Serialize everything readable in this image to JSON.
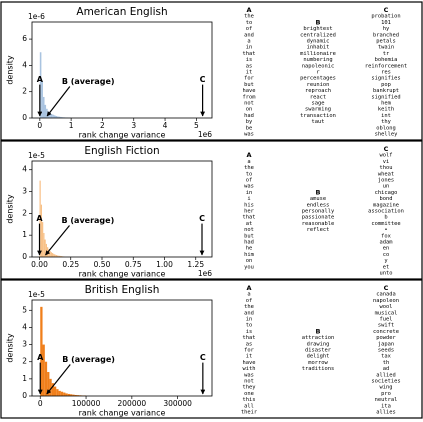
{
  "chart_data": [
    {
      "type": "histogram",
      "title": "American English",
      "x_label": "rank change variance",
      "y_label": "density",
      "x_offset_label": "1e6",
      "y_offset_label": "1e-6",
      "color": "#a9c3e0",
      "xlim": [
        -0.25,
        5.5
      ],
      "ylim": [
        0,
        7.3
      ],
      "xticks": [
        0,
        1,
        2,
        3,
        4,
        5
      ],
      "yticks": [
        0,
        2,
        4,
        6
      ],
      "bins": [
        0,
        0.05,
        0.1,
        0.15,
        0.2,
        0.25,
        0.3,
        0.35,
        0.4,
        0.45,
        0.5,
        0.55,
        0.6,
        0.65,
        0.7,
        0.75,
        0.8,
        0.85,
        0.9,
        0.95,
        1.0
      ],
      "values": [
        5.0,
        2.8,
        1.6,
        1.0,
        0.7,
        0.5,
        0.4,
        0.3,
        0.25,
        0.2,
        0.15,
        0.12,
        0.1,
        0.08,
        0.06,
        0.05,
        0.04,
        0.03,
        0.02,
        0.02
      ],
      "annotations": [
        {
          "text": "A",
          "x": 0.0
        },
        {
          "text": "B (average)",
          "x": 0.2
        },
        {
          "text": "C",
          "x": 5.2
        }
      ],
      "word_columns": [
        {
          "label": "A",
          "words": [
            "the",
            "to",
            "of",
            "and",
            "a",
            "in",
            "that",
            "is",
            "as",
            "it",
            "for",
            "but",
            "have",
            "from",
            "not",
            "on",
            "had",
            "by",
            "be",
            "was"
          ]
        },
        {
          "label": "B",
          "words": [
            "brightest",
            "centralized",
            "dynamic",
            "inhabit",
            "millionaire",
            "numbering",
            "napoleonic",
            "r",
            "percentages",
            "reunion",
            "reproach",
            "react",
            "sage",
            "swarming",
            "transaction",
            "taut"
          ]
        },
        {
          "label": "C",
          "words": [
            "probation",
            "101",
            "hy",
            "branched",
            "petals",
            "twain",
            "tr",
            "bohemia",
            "reinforcement",
            "res",
            "signifies",
            "pop",
            "bankrupt",
            "signified",
            "hem",
            "keith",
            "int",
            "thy",
            "oblong",
            "shelley"
          ]
        }
      ]
    },
    {
      "type": "histogram",
      "title": "English Fiction",
      "x_label": "rank change variance",
      "y_label": "density",
      "x_offset_label": "1e6",
      "y_offset_label": "1e-5",
      "color": "#f8c188",
      "xlim": [
        -0.06,
        1.38
      ],
      "ylim": [
        0,
        4.4
      ],
      "xticks": [
        {
          "value": 0,
          "label": "0.00"
        },
        {
          "value": 0.25,
          "label": "0.25"
        },
        {
          "value": 0.5,
          "label": "0.50"
        },
        {
          "value": 0.75,
          "label": "0.75"
        },
        {
          "value": 1,
          "label": "1.00"
        },
        {
          "value": 1.25,
          "label": "1.25"
        }
      ],
      "yticks": [
        0,
        1,
        2,
        3,
        4
      ],
      "bins": [
        0,
        0.01,
        0.02,
        0.03,
        0.04,
        0.05,
        0.06,
        0.07,
        0.08,
        0.09,
        0.1,
        0.11,
        0.12,
        0.13,
        0.14,
        0.15,
        0.16,
        0.17,
        0.18,
        0.19,
        0.2
      ],
      "values": [
        3.5,
        2.4,
        1.6,
        1.1,
        0.8,
        0.6,
        0.45,
        0.35,
        0.28,
        0.22,
        0.18,
        0.14,
        0.11,
        0.09,
        0.07,
        0.06,
        0.05,
        0.04,
        0.03,
        0.02
      ],
      "annotations": [
        {
          "text": "A",
          "x": 0.0
        },
        {
          "text": "B (average)",
          "x": 0.04
        },
        {
          "text": "C",
          "x": 1.3
        }
      ],
      "word_columns": [
        {
          "label": "A",
          "words": [
            "a",
            "the",
            "to",
            "of",
            "was",
            "in",
            "i",
            "his",
            "her",
            "that",
            "at",
            "not",
            "but",
            "had",
            "he",
            "him",
            "on",
            "you"
          ]
        },
        {
          "label": "B",
          "words": [
            "amuse",
            "endless",
            "personally",
            "passionate",
            "reasonable",
            "reflect"
          ]
        },
        {
          "label": "C",
          "words": [
            "wolf",
            "vi",
            "thou",
            "wheat",
            "jones",
            "un",
            "chicago",
            "bond",
            "magazine",
            "association",
            "b",
            "committee",
            "•",
            "fox",
            "adam",
            "en",
            "co",
            "y",
            "et",
            "unto"
          ]
        }
      ]
    },
    {
      "type": "histogram",
      "title": "British English",
      "x_label": "rank change variance",
      "y_label": "density",
      "y_offset_label": "1e-5",
      "color": "#f07f1b",
      "xlim": [
        -18000,
        375000
      ],
      "ylim": [
        0,
        5.6
      ],
      "xticks": [
        0,
        100000,
        200000,
        300000
      ],
      "yticks": [
        0,
        1,
        2,
        3,
        4,
        5
      ],
      "bins": [
        0,
        5000,
        10000,
        15000,
        20000,
        25000,
        30000,
        35000,
        40000,
        45000,
        50000,
        55000,
        60000,
        65000,
        70000,
        75000,
        80000,
        85000,
        90000,
        95000,
        100000
      ],
      "values": [
        5.2,
        3.0,
        2.0,
        1.4,
        1.0,
        0.75,
        0.55,
        0.4,
        0.3,
        0.25,
        0.2,
        0.15,
        0.12,
        0.1,
        0.08,
        0.06,
        0.05,
        0.04,
        0.03,
        0.03
      ],
      "annotations": [
        {
          "text": "A",
          "x": 0
        },
        {
          "text": "B (average)",
          "x": 12000
        },
        {
          "text": "C",
          "x": 355000
        }
      ],
      "word_columns": [
        {
          "label": "A",
          "words": [
            "a",
            "of",
            "the",
            "and",
            "in",
            "to",
            "is",
            "that",
            "as",
            "for",
            "it",
            "have",
            "with",
            "was",
            "not",
            "they",
            "one",
            "this",
            "all",
            "their"
          ]
        },
        {
          "label": "B",
          "words": [
            "attraction",
            "drawing",
            "disaster",
            "delight",
            "morrow",
            "traditions"
          ]
        },
        {
          "label": "C",
          "words": [
            "canada",
            "napoleon",
            "wool",
            "musical",
            "fuel",
            "swift",
            "concrete",
            "powder",
            "japan",
            "seeds",
            "tax",
            "th",
            "ad",
            "allied",
            "societies",
            "wing",
            "pro",
            "neutral",
            "ita",
            "allies"
          ]
        }
      ]
    }
  ]
}
